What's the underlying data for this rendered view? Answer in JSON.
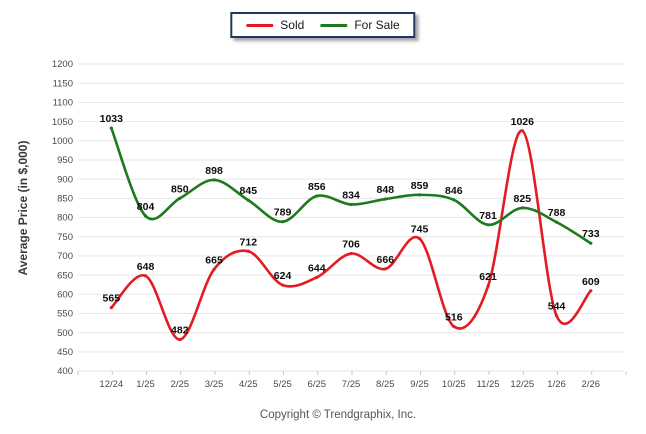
{
  "chart_data": {
    "type": "line",
    "line_style": "smooth",
    "title": "",
    "xlabel": "",
    "ylabel": "Average Price (in $,000)",
    "ylim": [
      400,
      1200
    ],
    "ytick_step": 50,
    "grid": true,
    "legend_position": "top-center",
    "categories": [
      "12/24",
      "1/25",
      "2/25",
      "3/25",
      "4/25",
      "5/25",
      "6/25",
      "7/25",
      "8/25",
      "9/25",
      "10/25",
      "11/25",
      "12/25",
      "1/26",
      "2/26"
    ],
    "series": [
      {
        "name": "Sold",
        "color": "#e31b22",
        "values": [
          565,
          648,
          482,
          665,
          712,
          624,
          644,
          706,
          666,
          745,
          516,
          621,
          1026,
          544,
          609
        ]
      },
      {
        "name": "For Sale",
        "color": "#1e7a1e",
        "values": [
          1033,
          804,
          850,
          898,
          845,
          789,
          856,
          834,
          848,
          859,
          846,
          781,
          825,
          788,
          733
        ]
      }
    ]
  },
  "footer": {
    "copyright": "Copyright © Trendgraphix, Inc."
  },
  "colors": {
    "grid": "#e6e6e6",
    "tick": "#c8c8c8",
    "tick_text": "#4a4a4a",
    "data_label": "#0d0d0d",
    "legend_border": "#24365f",
    "background": "#ffffff"
  }
}
